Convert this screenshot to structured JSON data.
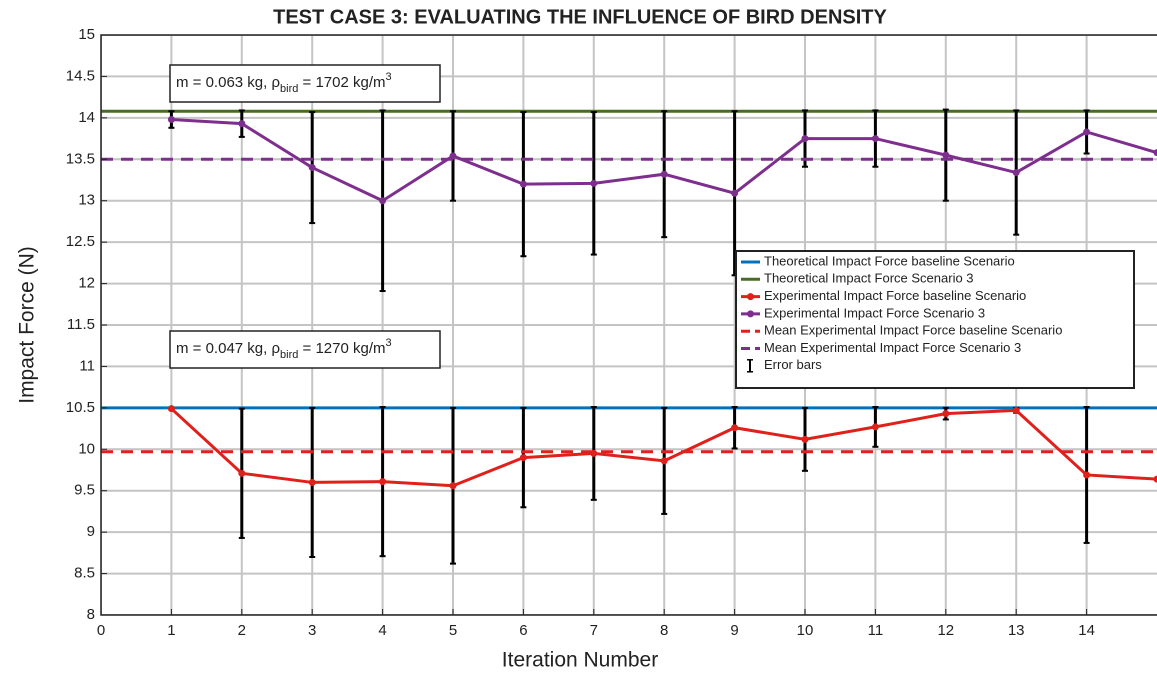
{
  "chart_data": {
    "type": "line",
    "title": "TEST CASE 3: EVALUATING THE INFLUENCE OF BIRD DENSITY",
    "x_label": "Iteration Number",
    "y_label": "Impact Force (N)",
    "xlim": [
      0,
      15
    ],
    "ylim": [
      8,
      15
    ],
    "xticks": [
      0,
      1,
      2,
      3,
      4,
      5,
      6,
      7,
      8,
      9,
      10,
      11,
      12,
      13,
      14
    ],
    "yticks": [
      8,
      8.5,
      9,
      9.5,
      10,
      10.5,
      11,
      11.5,
      12,
      12.5,
      13,
      13.5,
      14,
      14.5,
      15
    ],
    "grid": true,
    "x": [
      1,
      2,
      3,
      4,
      5,
      6,
      7,
      8,
      9,
      10,
      11,
      12,
      13,
      14,
      15
    ],
    "hlines": [
      {
        "name": "Theoretical Impact Force baseline Scenario",
        "color": "#0072bd",
        "dashed": false,
        "value": 10.5
      },
      {
        "name": "Theoretical Impact Force Scenario 3",
        "color": "#4a6b24",
        "dashed": false,
        "value": 14.08
      }
    ],
    "series": [
      {
        "name": "Experimental Impact Force baseline Scenario",
        "color": "#e0201b",
        "values": [
          10.49,
          9.71,
          9.6,
          9.61,
          9.56,
          9.9,
          9.95,
          9.86,
          10.26,
          10.12,
          10.27,
          10.43,
          10.47,
          9.69,
          9.64
        ],
        "errors": [
          0,
          0.78,
          0.9,
          0.9,
          0.94,
          0.6,
          0.56,
          0.64,
          0.25,
          0.38,
          0.24,
          0.07,
          0.03,
          0.82,
          null
        ]
      },
      {
        "name": "Experimental Impact Force Scenario 3",
        "color": "#7e2f8e",
        "values": [
          13.98,
          13.93,
          13.4,
          13.0,
          13.54,
          13.2,
          13.21,
          13.32,
          13.09,
          13.75,
          13.75,
          13.55,
          13.34,
          13.83,
          13.58
        ],
        "errors": [
          0.1,
          0.16,
          0.67,
          1.09,
          0.54,
          0.87,
          0.86,
          0.76,
          0.99,
          0.34,
          0.34,
          0.55,
          0.75,
          0.26,
          null
        ]
      }
    ],
    "mean_lines": [
      {
        "name": "Mean Experimental Impact Force baseline Scenario",
        "color": "#e0201b",
        "dashed": true,
        "value": 9.97
      },
      {
        "name": "Mean Experimental Impact Force Scenario 3",
        "color": "#7e2f8e",
        "dashed": true,
        "value": 13.5
      }
    ],
    "error_bar_legend": "Error bars",
    "annotations": [
      [
        "m = 0.063 kg, ρ",
        "bird",
        " = 1702 kg/m",
        "3"
      ],
      [
        "m = 0.047 kg, ρ",
        "bird",
        " = 1270 kg/m",
        "3"
      ]
    ]
  }
}
